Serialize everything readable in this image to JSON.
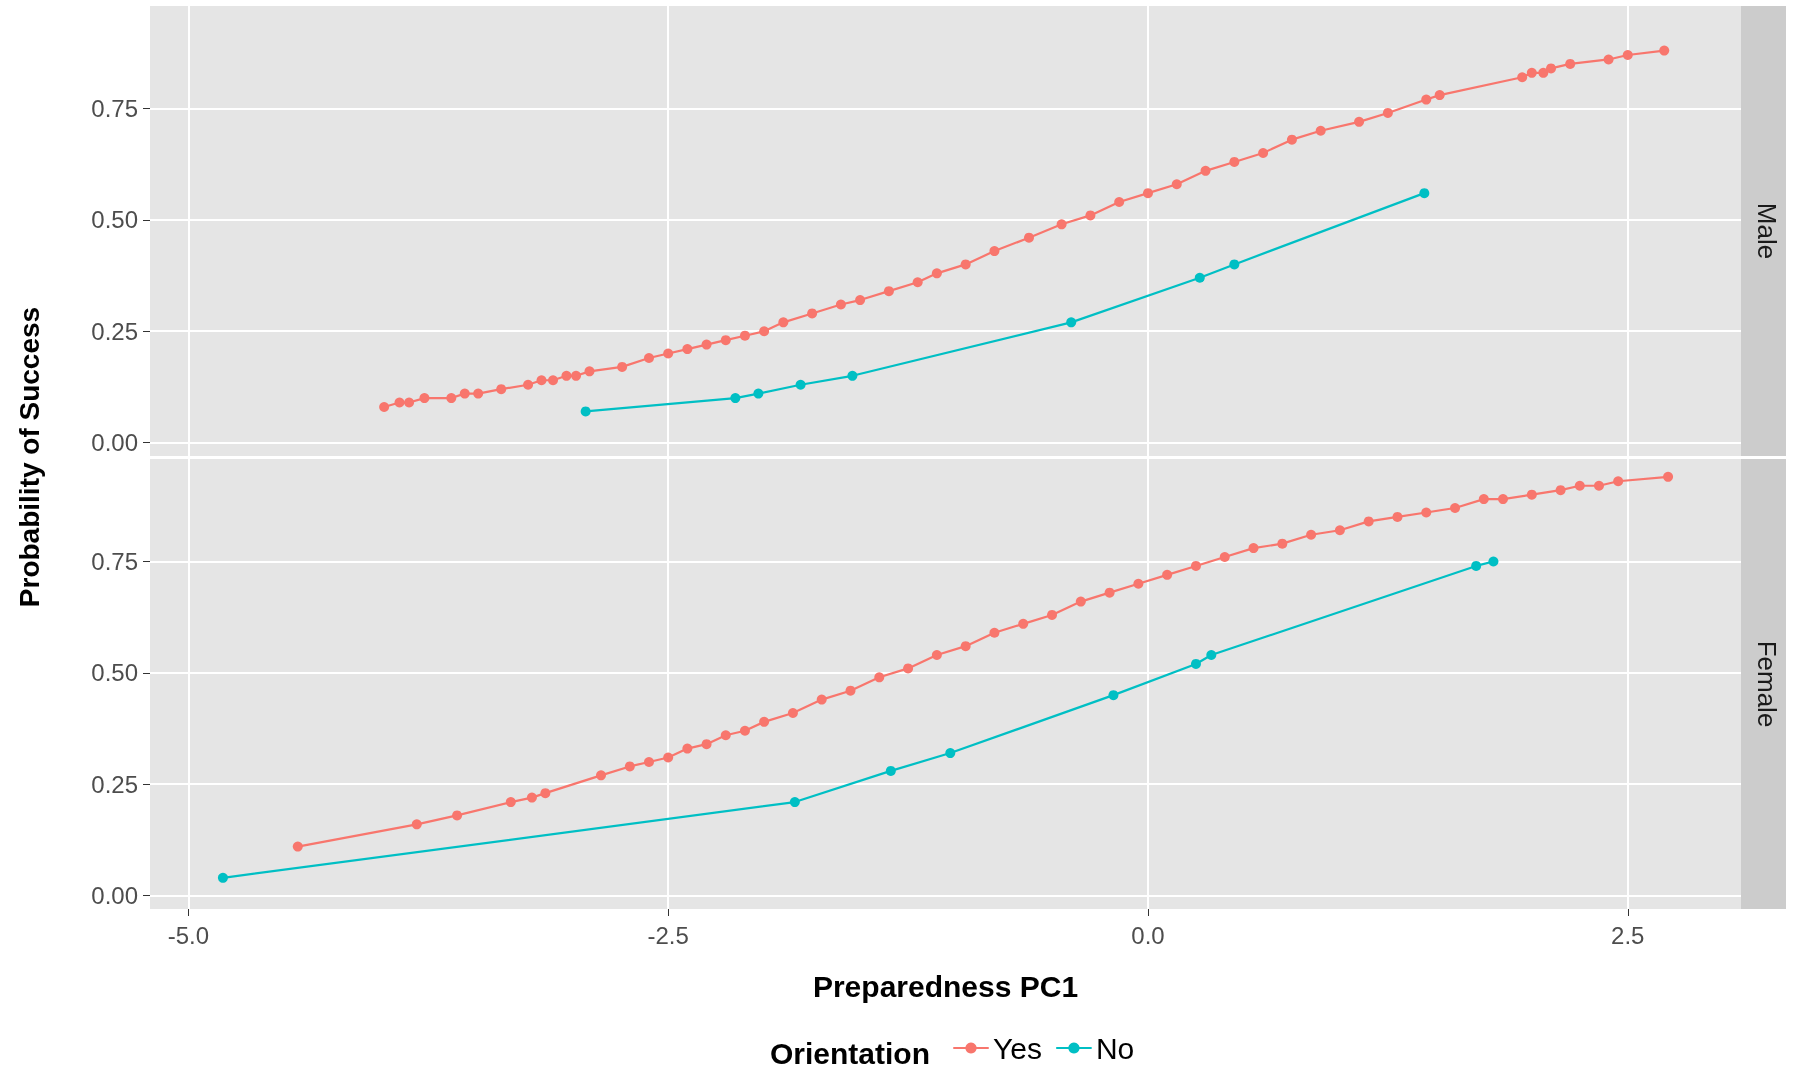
{
  "chart_data": [
    {
      "type": "line",
      "title": "Male",
      "ylabel": "Probability of Success",
      "xlim": [
        -5.2,
        3.09
      ],
      "ylim": [
        -0.03,
        0.98
      ],
      "xticks": [
        {
          "value": -5,
          "label": null
        },
        {
          "value": -2.5,
          "label": null
        },
        {
          "value": 0,
          "label": null
        },
        {
          "value": 2.5,
          "label": null
        }
      ],
      "yticks": [
        {
          "value": 0,
          "label": "0.00"
        },
        {
          "value": 0.25,
          "label": "0.25"
        },
        {
          "value": 0.5,
          "label": "0.50"
        },
        {
          "value": 0.75,
          "label": "0.75"
        }
      ],
      "grid": true,
      "marker": "circle",
      "line_style": "solid",
      "tick_labels": "y",
      "legend": false,
      "series": [
        {
          "color": "#f8766d",
          "x": [
            -3.98,
            -3.9,
            -3.85,
            -3.77,
            -3.63,
            -3.56,
            -3.49,
            -3.37,
            -3.23,
            -3.16,
            -3.1,
            -3.03,
            -2.98,
            -2.91,
            -2.74,
            -2.6,
            -2.5,
            -2.4,
            -2.3,
            -2.2,
            -2.1,
            -2.0,
            -1.9,
            -1.75,
            -1.6,
            -1.5,
            -1.35,
            -1.2,
            -1.1,
            -0.95,
            -0.8,
            -0.62,
            -0.45,
            -0.3,
            -0.15,
            0.0,
            0.15,
            0.3,
            0.45,
            0.6,
            0.75,
            0.9,
            1.1,
            1.25,
            1.45,
            1.52,
            1.95,
            2.0,
            2.06,
            2.1,
            2.2,
            2.4,
            2.5,
            2.69
          ],
          "values": [
            0.08,
            0.09,
            0.09,
            0.1,
            0.1,
            0.11,
            0.11,
            0.12,
            0.13,
            0.14,
            0.14,
            0.15,
            0.15,
            0.16,
            0.17,
            0.19,
            0.2,
            0.21,
            0.22,
            0.23,
            0.24,
            0.25,
            0.27,
            0.29,
            0.31,
            0.32,
            0.34,
            0.36,
            0.38,
            0.4,
            0.43,
            0.46,
            0.49,
            0.51,
            0.54,
            0.56,
            0.58,
            0.61,
            0.63,
            0.65,
            0.68,
            0.7,
            0.72,
            0.74,
            0.77,
            0.78,
            0.82,
            0.83,
            0.83,
            0.84,
            0.85,
            0.86,
            0.87,
            0.88
          ]
        },
        {
          "color": "#00bfc4",
          "x": [
            -2.93,
            -2.15,
            -2.03,
            -1.81,
            -1.54,
            -0.4,
            0.27,
            0.45,
            1.44
          ],
          "values": [
            0.07,
            0.1,
            0.11,
            0.13,
            0.15,
            0.27,
            0.37,
            0.4,
            0.56
          ]
        }
      ]
    },
    {
      "type": "line",
      "title": "Female",
      "xlabel": "Preparedness PC1",
      "legend_title": "Orientation",
      "xlim": [
        -5.2,
        3.09
      ],
      "ylim": [
        -0.03,
        0.98
      ],
      "xticks": [
        {
          "value": -5,
          "label": "-5.0"
        },
        {
          "value": -2.5,
          "label": "-2.5"
        },
        {
          "value": 0,
          "label": "0.0"
        },
        {
          "value": 2.5,
          "label": "2.5"
        }
      ],
      "yticks": [
        {
          "value": 0,
          "label": "0.00"
        },
        {
          "value": 0.25,
          "label": "0.25"
        },
        {
          "value": 0.5,
          "label": "0.50"
        },
        {
          "value": 0.75,
          "label": "0.75"
        }
      ],
      "grid": true,
      "marker": "circle",
      "line_style": "solid",
      "legend": "bottom",
      "series": [
        {
          "name": "Yes",
          "color": "#f8766d",
          "x": [
            -4.43,
            -3.81,
            -3.6,
            -3.32,
            -3.21,
            -3.14,
            -2.85,
            -2.7,
            -2.6,
            -2.5,
            -2.4,
            -2.3,
            -2.2,
            -2.1,
            -2.0,
            -1.85,
            -1.7,
            -1.55,
            -1.4,
            -1.25,
            -1.1,
            -0.95,
            -0.8,
            -0.65,
            -0.5,
            -0.35,
            -0.2,
            -0.05,
            0.1,
            0.25,
            0.4,
            0.55,
            0.7,
            0.85,
            1.0,
            1.15,
            1.3,
            1.45,
            1.6,
            1.75,
            1.85,
            2.0,
            2.15,
            2.25,
            2.35,
            2.45,
            2.71
          ],
          "values": [
            0.11,
            0.16,
            0.18,
            0.21,
            0.22,
            0.23,
            0.27,
            0.29,
            0.3,
            0.31,
            0.33,
            0.34,
            0.36,
            0.37,
            0.39,
            0.41,
            0.44,
            0.46,
            0.49,
            0.51,
            0.54,
            0.56,
            0.59,
            0.61,
            0.63,
            0.66,
            0.68,
            0.7,
            0.72,
            0.74,
            0.76,
            0.78,
            0.79,
            0.81,
            0.82,
            0.84,
            0.85,
            0.86,
            0.87,
            0.89,
            0.89,
            0.9,
            0.91,
            0.92,
            0.92,
            0.93,
            0.94
          ]
        },
        {
          "name": "No",
          "color": "#00bfc4",
          "x": [
            -4.82,
            -1.84,
            -1.34,
            -1.03,
            -0.18,
            0.25,
            0.33,
            1.71,
            1.8
          ],
          "values": [
            0.04,
            0.21,
            0.28,
            0.32,
            0.45,
            0.52,
            0.54,
            0.74,
            0.75
          ]
        }
      ]
    }
  ]
}
